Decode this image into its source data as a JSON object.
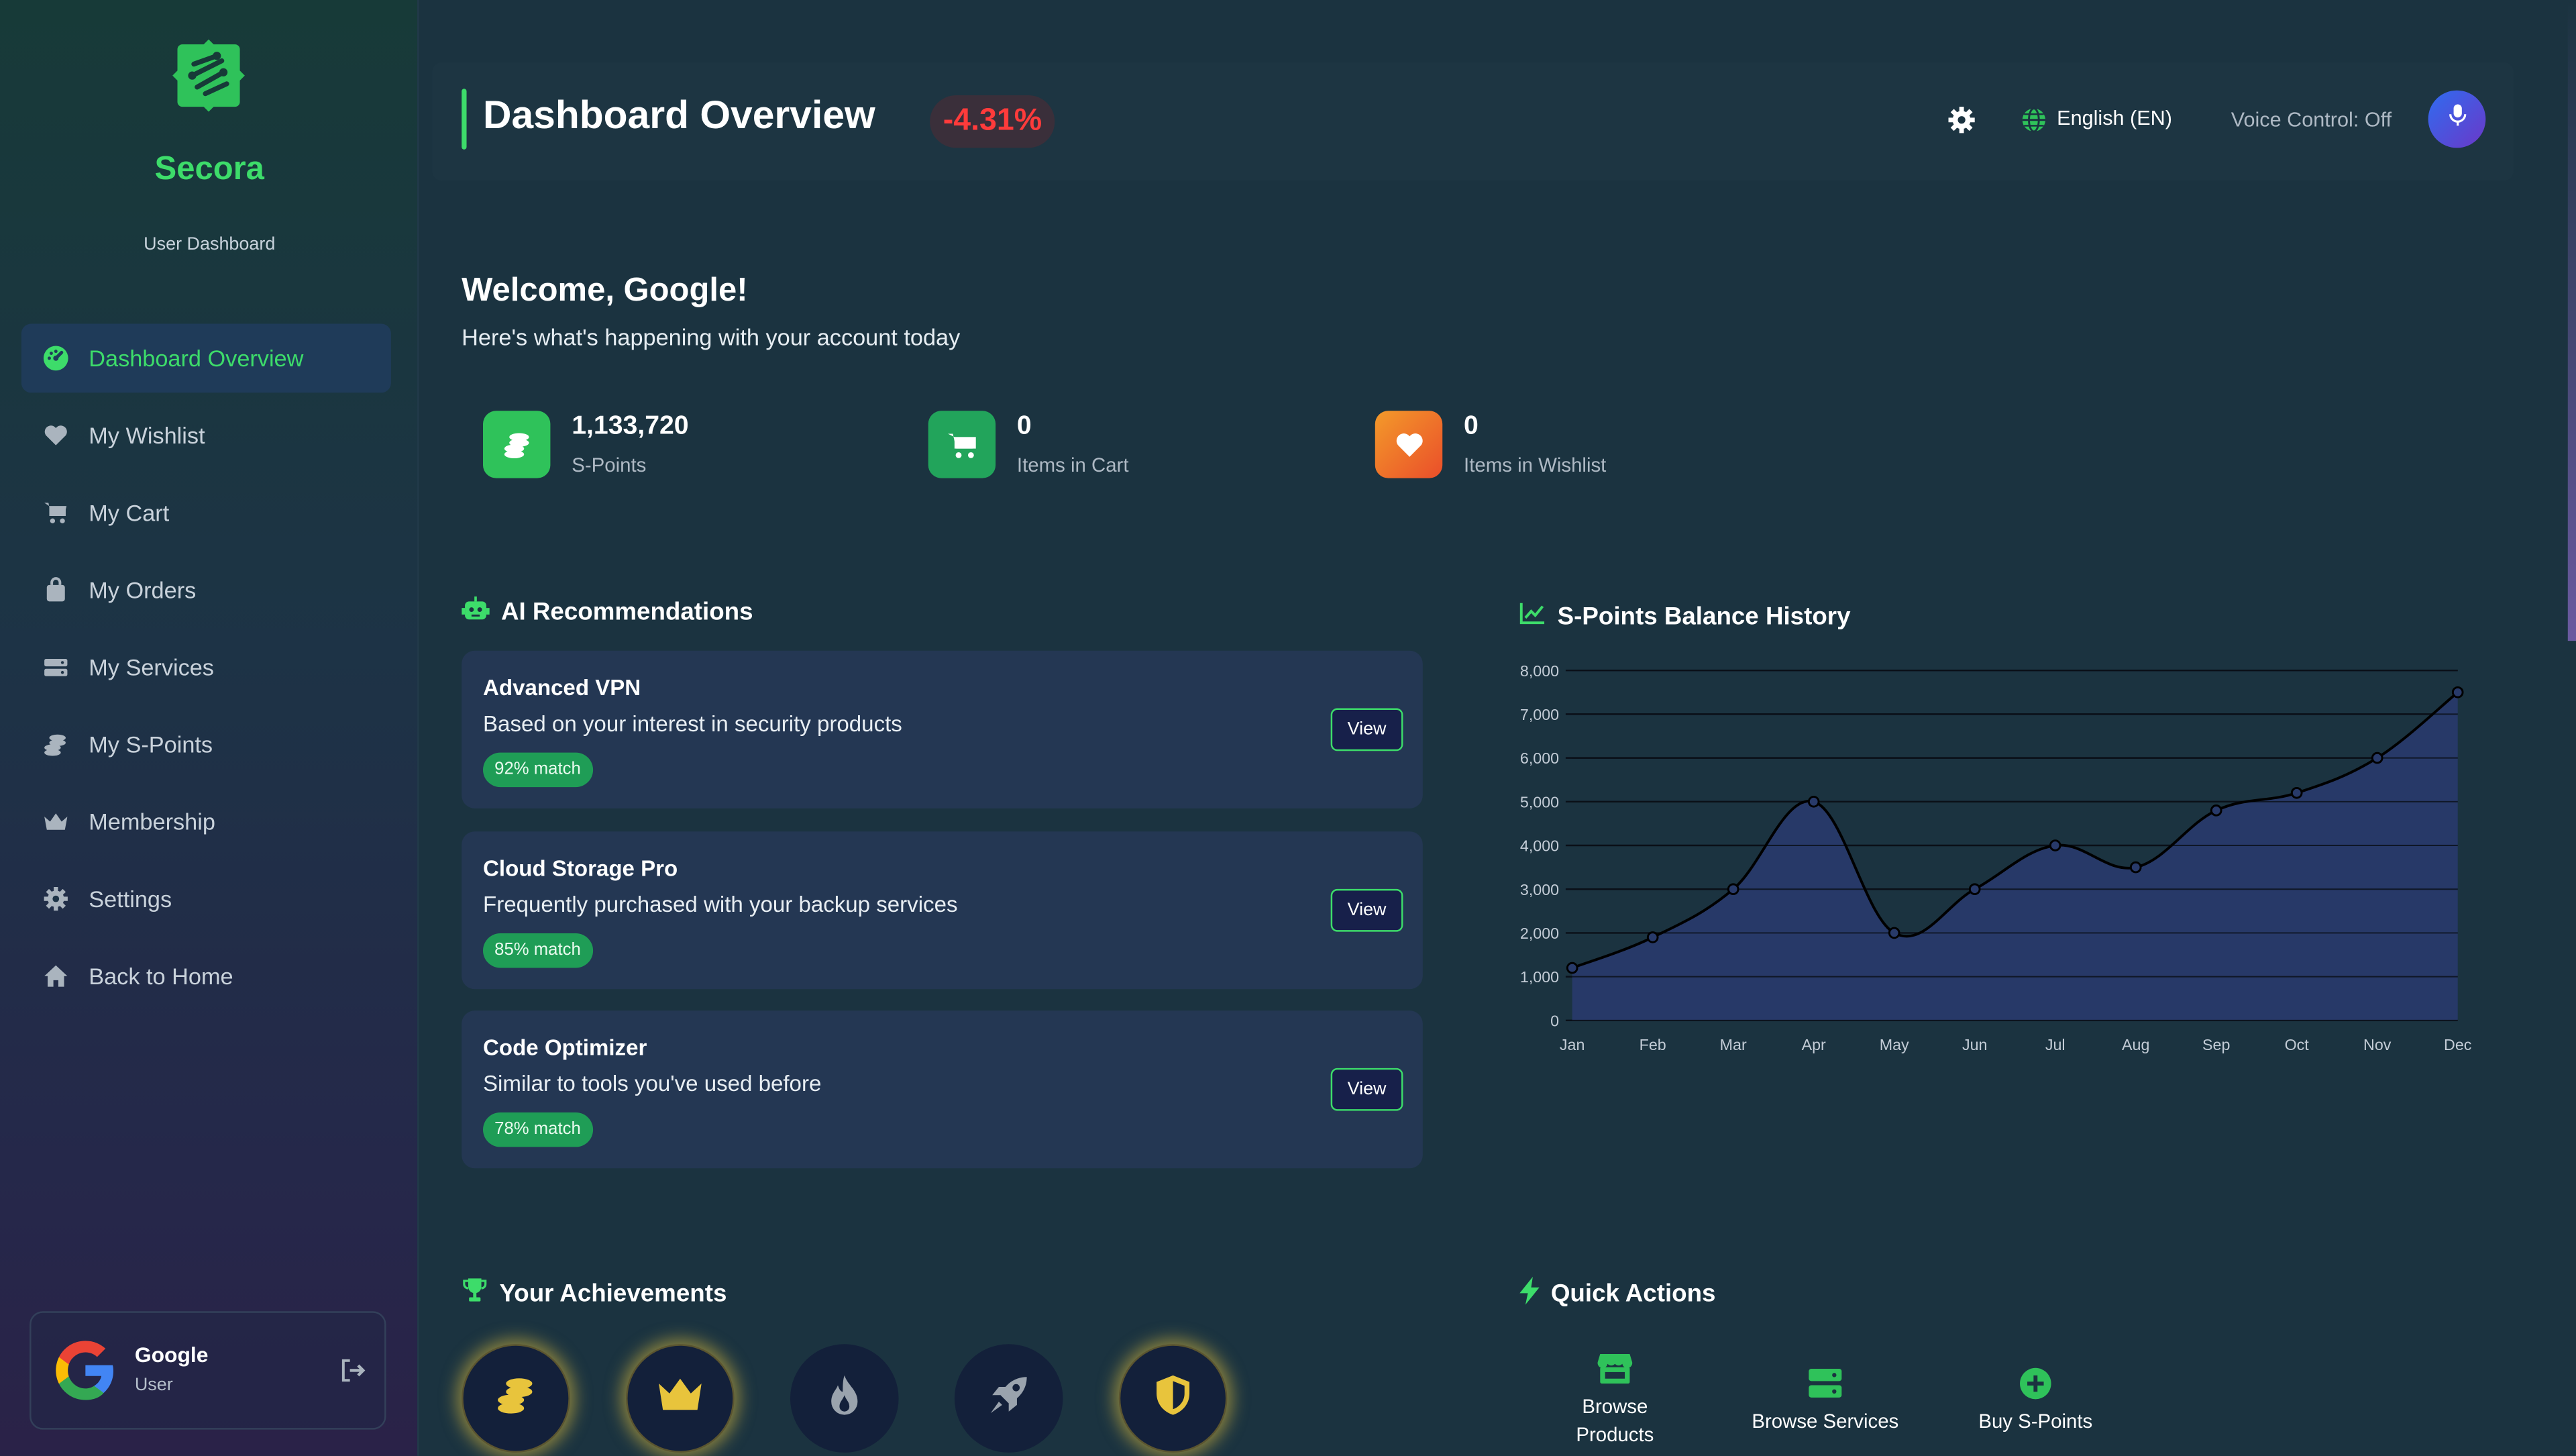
{
  "brand": {
    "name": "Secora",
    "subtitle": "User Dashboard"
  },
  "sidebar": {
    "items": [
      {
        "label": "Dashboard Overview",
        "icon": "gauge-icon",
        "active": true
      },
      {
        "label": "My Wishlist",
        "icon": "heart-icon"
      },
      {
        "label": "My Cart",
        "icon": "cart-icon"
      },
      {
        "label": "My Orders",
        "icon": "bag-icon"
      },
      {
        "label": "My Services",
        "icon": "server-icon"
      },
      {
        "label": "My S-Points",
        "icon": "coins-icon"
      },
      {
        "label": "Membership",
        "icon": "crown-icon"
      },
      {
        "label": "Settings",
        "icon": "gear-icon"
      },
      {
        "label": "Back to Home",
        "icon": "home-icon"
      }
    ],
    "user": {
      "name": "Google",
      "role": "User"
    }
  },
  "header": {
    "title": "Dashboard Overview",
    "change": "-4.31%",
    "language": "English (EN)",
    "voice_control": "Voice Control: Off"
  },
  "welcome": {
    "title": "Welcome, Google!",
    "subtitle": "Here's what's happening with your account today"
  },
  "stats": [
    {
      "value": "1,133,720",
      "label": "S-Points",
      "icon": "coins-icon",
      "color": "#2fc25a"
    },
    {
      "value": "0",
      "label": "Items in Cart",
      "icon": "cart-icon",
      "color": "#22a45b"
    },
    {
      "value": "0",
      "label": "Items in Wishlist",
      "icon": "heart-icon",
      "color": "#f06a25"
    }
  ],
  "recommendations": {
    "heading": "AI Recommendations",
    "view_label": "View",
    "items": [
      {
        "title": "Advanced VPN",
        "desc": "Based on your interest in security products",
        "match": "92% match"
      },
      {
        "title": "Cloud Storage Pro",
        "desc": "Frequently purchased with your backup services",
        "match": "85% match"
      },
      {
        "title": "Code Optimizer",
        "desc": "Similar to tools you've used before",
        "match": "78% match"
      }
    ]
  },
  "chart": {
    "heading": "S-Points Balance History"
  },
  "chart_data": {
    "type": "area",
    "categories": [
      "Jan",
      "Feb",
      "Mar",
      "Apr",
      "May",
      "Jun",
      "Jul",
      "Aug",
      "Sep",
      "Oct",
      "Nov",
      "Dec"
    ],
    "values": [
      1200,
      1900,
      3000,
      5000,
      2000,
      3000,
      4000,
      3500,
      4800,
      5200,
      6000,
      7500
    ],
    "ylim": [
      0,
      8000
    ],
    "yticks": [
      "0",
      "1,000",
      "2,000",
      "3,000",
      "4,000",
      "5,000",
      "6,000",
      "7,000",
      "8,000"
    ],
    "grid": true,
    "colors": {
      "fill": "#283a6a",
      "line": "#000000",
      "grid": "#0a0f18"
    }
  },
  "achievements": {
    "heading": "Your Achievements",
    "badges": [
      {
        "icon": "coins-icon",
        "unlocked": true,
        "color": "#e8c43c"
      },
      {
        "icon": "crown-icon",
        "unlocked": true,
        "color": "#e8c43c"
      },
      {
        "icon": "fire-icon",
        "unlocked": false,
        "color": "#9aa3ad"
      },
      {
        "icon": "rocket-icon",
        "unlocked": false,
        "color": "#9aa3ad"
      },
      {
        "icon": "shield-icon",
        "unlocked": true,
        "color": "#e8c43c"
      }
    ]
  },
  "quick_actions": {
    "heading": "Quick Actions",
    "items": [
      {
        "label_line1": "Browse",
        "label_line2": "Products",
        "icon": "store-icon"
      },
      {
        "label_line1": "Browse Services",
        "label_line2": "",
        "icon": "server-icon"
      },
      {
        "label_line1": "Buy S-Points",
        "label_line2": "",
        "icon": "plus-circle-icon"
      }
    ]
  },
  "colors": {
    "accent": "#3ddc6a",
    "negative": "#ff3b3b"
  }
}
